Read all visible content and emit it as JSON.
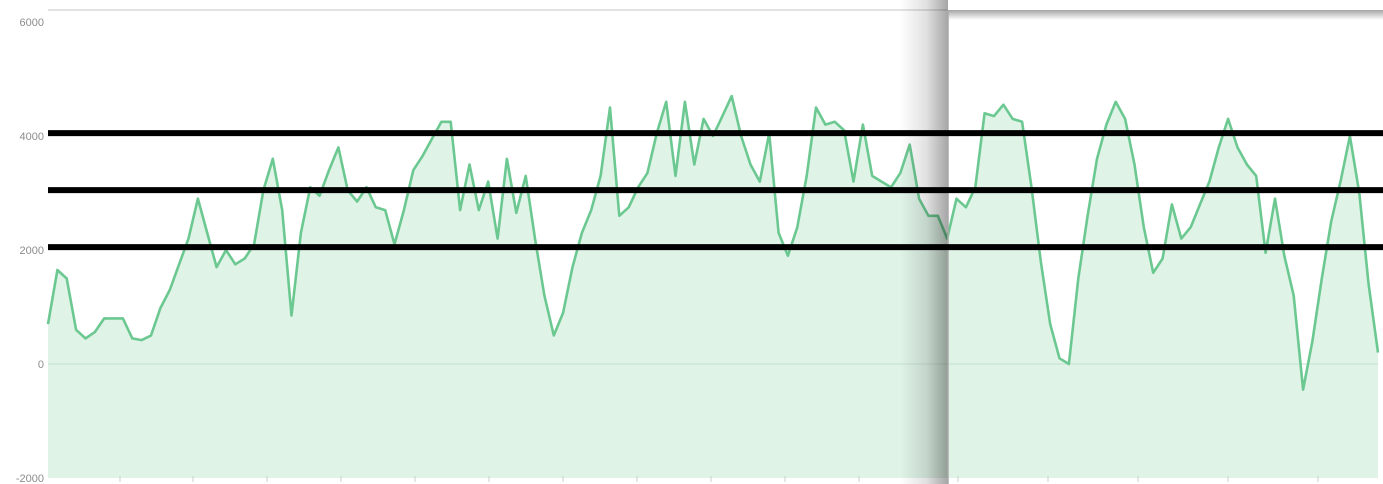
{
  "chart_data": {
    "type": "area",
    "title": "",
    "xlabel": "",
    "ylabel": "",
    "ylim": [
      -2000,
      6000
    ],
    "yticks": [
      6000,
      4000,
      2000,
      0,
      -2000
    ],
    "ytick_labels": [
      "6000",
      "4000",
      "2000",
      "0",
      "-2000"
    ],
    "grid": false,
    "legend": "none",
    "series": [
      {
        "values": [
          700,
          1650,
          1500,
          600,
          450,
          560,
          800,
          800,
          800,
          450,
          420,
          500,
          980,
          1300,
          1750,
          2200,
          2900,
          2300,
          1700,
          2000,
          1750,
          1850,
          2100,
          3050,
          3600,
          2700,
          850,
          2300,
          3100,
          2950,
          3400,
          3800,
          3050,
          2850,
          3100,
          2750,
          2700,
          2100,
          2700,
          3400,
          3650,
          3950,
          4250,
          4250,
          2700,
          3500,
          2700,
          3200,
          2200,
          3600,
          2650,
          3300,
          2200,
          1200,
          500,
          900,
          1700,
          2300,
          2700,
          3300,
          4500,
          2600,
          2750,
          3100,
          3350,
          4050,
          4600,
          3300,
          4600,
          3500,
          4300,
          4000,
          4350,
          4700,
          4000,
          3500,
          3200,
          4050,
          2300,
          1900,
          2400,
          3300,
          4500,
          4200,
          4250,
          4100,
          3200,
          4200,
          3300,
          3200,
          3100,
          3350,
          3850,
          2900,
          2600,
          2600,
          2200,
          2900,
          2750,
          3100,
          4400,
          4350,
          4550,
          4300,
          4250,
          3100,
          1800,
          700,
          100,
          0,
          1500,
          2600,
          3600,
          4200,
          4600,
          4300,
          3500,
          2400,
          1600,
          1850,
          2800,
          2200,
          2400,
          2800,
          3200,
          3800,
          4300,
          3800,
          3500,
          3300,
          1950,
          2900,
          1900,
          1200,
          -450,
          400,
          1500,
          2500,
          3200,
          4000,
          3000,
          1400,
          200
        ]
      }
    ]
  }
}
